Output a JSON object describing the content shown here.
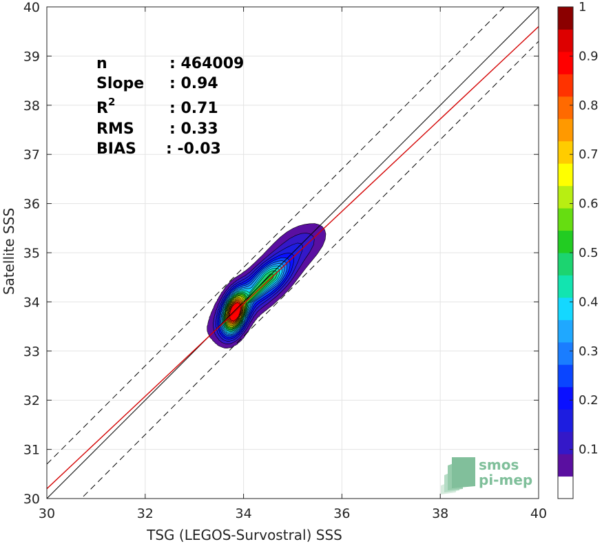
{
  "chart_data": {
    "type": "contour",
    "xlabel": "TSG (LEGOS-Survostral) SSS",
    "ylabel": "Satellite SSS",
    "xlim": [
      30,
      40
    ],
    "ylim": [
      30,
      40
    ],
    "x_ticks": [
      "30",
      "32",
      "34",
      "36",
      "38",
      "40"
    ],
    "y_ticks": [
      "30",
      "31",
      "32",
      "33",
      "34",
      "35",
      "36",
      "37",
      "38",
      "39",
      "40"
    ],
    "grid": true,
    "stats": [
      {
        "name": "n",
        "value": ": 464009"
      },
      {
        "name": "Slope",
        "value": ": 0.94"
      },
      {
        "name": "R",
        "sup": "2",
        "value": ": 0.71"
      },
      {
        "name": "RMS",
        "value": ": 0.33"
      },
      {
        "name": "BIAS",
        "value": ": -0.03"
      }
    ],
    "identity_line": {
      "slope": 1,
      "intercept": 0,
      "color": "#000000"
    },
    "bound_offset": 0.7,
    "regression_line": {
      "slope": 0.94,
      "intercept": 2.0,
      "color": "#d40000"
    },
    "density": {
      "center": [
        33.82,
        33.75
      ],
      "levels": [
        0.05,
        0.1,
        0.15,
        0.2,
        0.25,
        0.3,
        0.35,
        0.4,
        0.45,
        0.5,
        0.55,
        0.6,
        0.65,
        0.7,
        0.75,
        0.8,
        0.85,
        0.9,
        0.95
      ],
      "blobs": [
        {
          "x": 33.82,
          "y": 33.78,
          "sx": 0.17,
          "sy": 0.29,
          "rho": 0.35,
          "w": 1.0
        },
        {
          "x": 34.52,
          "y": 34.5,
          "sx": 0.27,
          "sy": 0.25,
          "rho": 0.55,
          "w": 0.42
        },
        {
          "x": 34.2,
          "y": 34.12,
          "sx": 0.55,
          "sy": 0.48,
          "rho": 0.8,
          "w": 0.2
        },
        {
          "x": 35.1,
          "y": 35.15,
          "sx": 0.4,
          "sy": 0.32,
          "rho": 0.5,
          "w": 0.13
        }
      ]
    },
    "colorbar": {
      "ticks": [
        "0.1",
        "0.2",
        "0.3",
        "0.4",
        "0.5",
        "0.6",
        "0.7",
        "0.8",
        "0.9",
        "1"
      ],
      "colors": [
        "#ffffff",
        "#5a0fa0",
        "#3418c8",
        "#1d1de0",
        "#0a10ff",
        "#0a45ff",
        "#1a7dff",
        "#1fa8ff",
        "#14d8ff",
        "#12e4b0",
        "#1cd470",
        "#22cc22",
        "#66dd11",
        "#b8ee12",
        "#ffff00",
        "#ffcc00",
        "#ff9900",
        "#ff6a00",
        "#ff3300",
        "#ff0000",
        "#dd0000",
        "#8b0000"
      ]
    }
  },
  "logo": {
    "line1": "smos",
    "line2": "pi-mep"
  }
}
